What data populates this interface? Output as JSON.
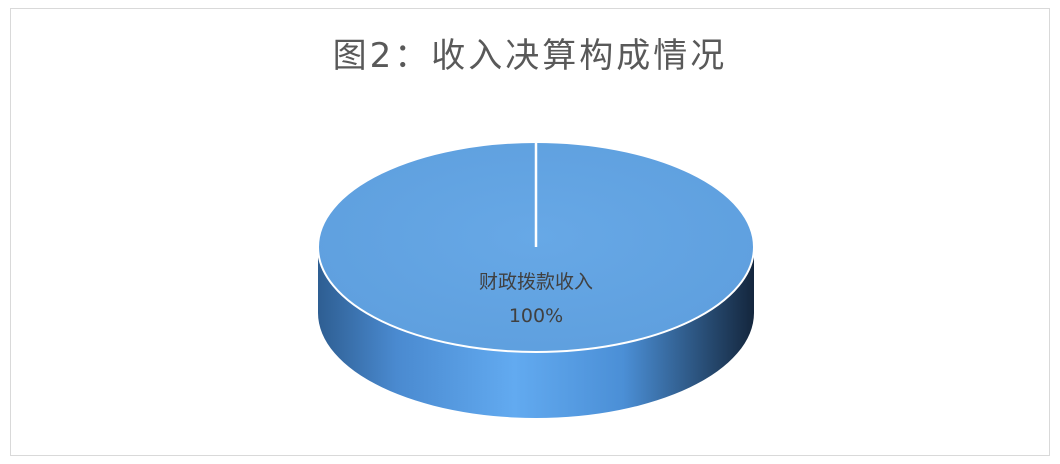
{
  "chart_data": {
    "type": "pie",
    "title": "图2：收入决算构成情况",
    "categories": [
      "财政拨款收入"
    ],
    "values": [
      100
    ],
    "data_labels": [
      "财政拨款收入",
      "100%"
    ],
    "colors": {
      "slice_top": "#62a3e2",
      "slice_side_light": "#5fa6ea",
      "slice_side_dark": "#1f3f66",
      "label": "#404040",
      "title": "#595959",
      "border": "#d9d9d9"
    },
    "legend": "none"
  }
}
